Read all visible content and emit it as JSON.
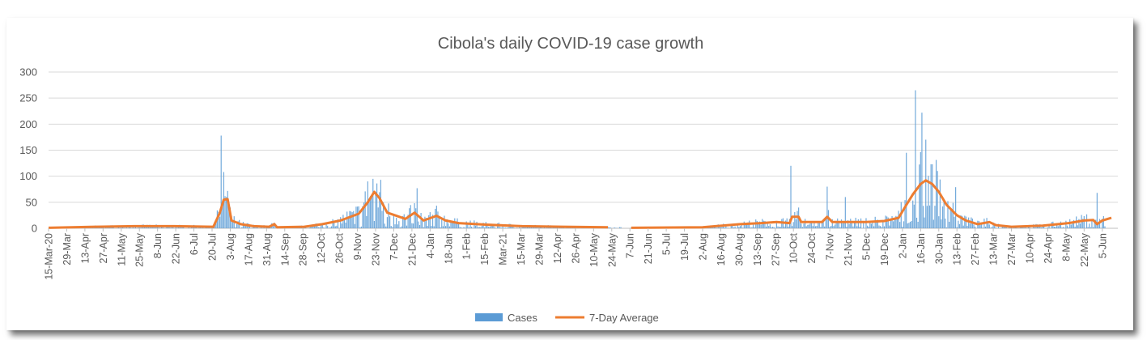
{
  "chart_data": {
    "type": "bar",
    "title": "Cibola's daily COVID-19 case growth",
    "ylim": [
      0,
      300
    ],
    "yticks": [
      0,
      50,
      100,
      150,
      200,
      250,
      300
    ],
    "grid": true,
    "legend_position": "bottom",
    "x_start": "2020-03-15",
    "tick_labels": [
      "15-Mar-20",
      "29-Mar",
      "13-Apr",
      "27-Apr",
      "11-May",
      "25-May",
      "8-Jun",
      "22-Jun",
      "6-Jul",
      "20-Jul",
      "3-Aug",
      "17-Aug",
      "31-Aug",
      "14-Sep",
      "28-Sep",
      "12-Oct",
      "26-Oct",
      "9-Nov",
      "23-Nov",
      "7-Dec",
      "21-Dec",
      "4-Jan",
      "18-Jan",
      "1-Feb",
      "15-Feb",
      "Mar-21",
      "15-Mar",
      "29-Mar",
      "12-Apr",
      "26-Apr",
      "10-May",
      "24-May",
      "7-Jun",
      "21-Jun",
      "5-Jul",
      "19-Jul",
      "2-Aug",
      "16-Aug",
      "30-Aug",
      "13-Sep",
      "27-Sep",
      "10-Oct",
      "24-Oct",
      "7-Nov",
      "21-Nov",
      "5-Dec",
      "19-Dec",
      "2-Jan",
      "16-Jan",
      "30-Jan",
      "13-Feb",
      "27-Feb",
      "13-Mar",
      "27-Mar",
      "10-Apr",
      "24-Apr",
      "8-May",
      "22-May",
      "5-Jun"
    ],
    "series": [
      {
        "name": "Cases",
        "kind": "bar",
        "color": "#5b9bd5",
        "sparse_points": [
          [
            "2020-07-26",
            178
          ],
          [
            "2020-07-28",
            108
          ],
          [
            "2020-07-30",
            60
          ],
          [
            "2020-08-01",
            40
          ],
          [
            "2020-11-16",
            90
          ],
          [
            "2020-11-20",
            95
          ],
          [
            "2020-11-22",
            70
          ],
          [
            "2020-12-24",
            77
          ],
          [
            "2021-10-08",
            120
          ],
          [
            "2021-11-05",
            80
          ],
          [
            "2021-11-19",
            60
          ],
          [
            "2022-01-05",
            145
          ],
          [
            "2022-01-12",
            265
          ],
          [
            "2022-01-17",
            222
          ],
          [
            "2022-01-24",
            123
          ],
          [
            "2022-01-29",
            110
          ],
          [
            "2022-02-12",
            79
          ],
          [
            "2022-06-01",
            68
          ]
        ]
      },
      {
        "name": "7-Day Average",
        "kind": "line",
        "color": "#ed7d31",
        "points": [
          [
            "2020-03-15",
            1
          ],
          [
            "2020-04-20",
            3
          ],
          [
            "2020-05-20",
            4
          ],
          [
            "2020-06-20",
            4
          ],
          [
            "2020-07-20",
            3
          ],
          [
            "2020-07-25",
            30
          ],
          [
            "2020-07-28",
            55
          ],
          [
            "2020-07-31",
            56
          ],
          [
            "2020-08-03",
            15
          ],
          [
            "2020-08-10",
            8
          ],
          [
            "2020-08-20",
            4
          ],
          [
            "2020-09-01",
            3
          ],
          [
            "2020-09-05",
            8
          ],
          [
            "2020-09-07",
            2
          ],
          [
            "2020-09-28",
            3
          ],
          [
            "2020-10-12",
            8
          ],
          [
            "2020-10-26",
            15
          ],
          [
            "2020-11-09",
            28
          ],
          [
            "2020-11-16",
            50
          ],
          [
            "2020-11-21",
            70
          ],
          [
            "2020-11-25",
            58
          ],
          [
            "2020-12-01",
            30
          ],
          [
            "2020-12-07",
            25
          ],
          [
            "2020-12-15",
            18
          ],
          [
            "2020-12-22",
            30
          ],
          [
            "2020-12-29",
            15
          ],
          [
            "2021-01-08",
            24
          ],
          [
            "2021-01-15",
            15
          ],
          [
            "2021-01-25",
            10
          ],
          [
            "2021-02-15",
            7
          ],
          [
            "2021-03-15",
            4
          ],
          [
            "2021-04-15",
            3
          ],
          [
            "2021-05-20",
            2
          ],
          [
            "2021-06-07",
            1
          ],
          [
            "2021-08-01",
            2
          ],
          [
            "2021-08-30",
            8
          ],
          [
            "2021-09-15",
            10
          ],
          [
            "2021-09-27",
            12
          ],
          [
            "2021-10-07",
            10
          ],
          [
            "2021-10-09",
            22
          ],
          [
            "2021-10-14",
            22
          ],
          [
            "2021-10-16",
            12
          ],
          [
            "2021-11-01",
            12
          ],
          [
            "2021-11-05",
            22
          ],
          [
            "2021-11-09",
            12
          ],
          [
            "2021-12-05",
            12
          ],
          [
            "2021-12-19",
            14
          ],
          [
            "2021-12-30",
            20
          ],
          [
            "2022-01-05",
            45
          ],
          [
            "2022-01-10",
            65
          ],
          [
            "2022-01-16",
            85
          ],
          [
            "2022-01-20",
            92
          ],
          [
            "2022-01-25",
            85
          ],
          [
            "2022-01-30",
            70
          ],
          [
            "2022-02-05",
            45
          ],
          [
            "2022-02-13",
            25
          ],
          [
            "2022-02-20",
            15
          ],
          [
            "2022-03-01",
            8
          ],
          [
            "2022-03-10",
            12
          ],
          [
            "2022-03-15",
            6
          ],
          [
            "2022-03-27",
            3
          ],
          [
            "2022-04-20",
            5
          ],
          [
            "2022-05-10",
            10
          ],
          [
            "2022-05-22",
            15
          ],
          [
            "2022-05-29",
            16
          ],
          [
            "2022-06-01",
            8
          ],
          [
            "2022-06-05",
            15
          ],
          [
            "2022-06-12",
            20
          ]
        ]
      }
    ]
  }
}
